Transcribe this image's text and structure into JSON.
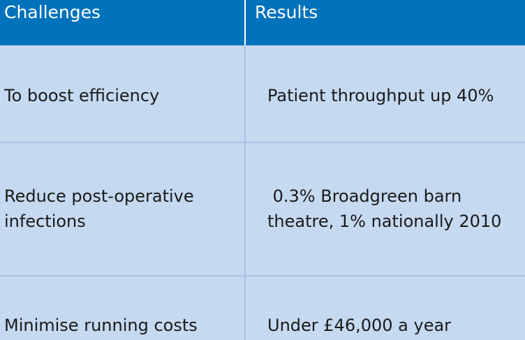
{
  "header": {
    "col1": "Challenges",
    "col2": "Results"
  },
  "rows": [
    {
      "challenge": "To boost efficiency",
      "result": "Patient throughput up 40%"
    },
    {
      "challenge": "Reduce post-operative\ninfections",
      "result": " 0.3% Broadgreen barn\ntheatre, 1% nationally 2010"
    },
    {
      "challenge": "Minimise running costs",
      "result": "Under £46,000 a year"
    }
  ],
  "colors": {
    "header_bg": "#0072bc",
    "body_bg": "#c5d9f0",
    "header_text": "#ffffff",
    "body_text": "#1a1a1a"
  }
}
